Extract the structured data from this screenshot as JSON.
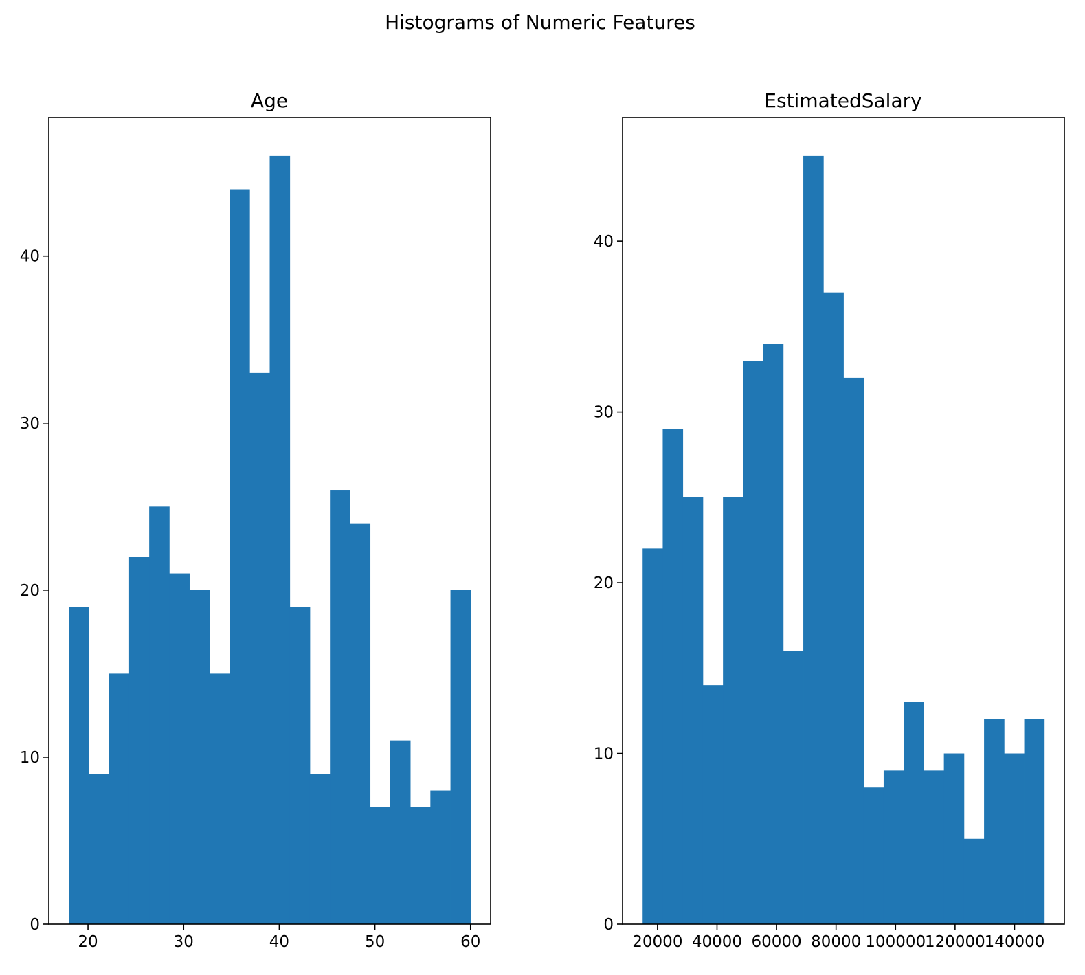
{
  "chart_data": [
    {
      "type": "bar",
      "title": "Age",
      "bar_color": "#2077b4",
      "bin_edges": [
        18,
        20.1,
        22.2,
        24.3,
        26.4,
        28.5,
        30.6,
        32.7,
        34.8,
        36.9,
        39,
        41.1,
        43.2,
        45.3,
        47.4,
        49.5,
        51.6,
        53.7,
        55.8,
        57.9,
        60
      ],
      "counts": [
        19,
        9,
        15,
        22,
        25,
        21,
        20,
        15,
        44,
        33,
        46,
        19,
        9,
        26,
        24,
        7,
        11,
        7,
        8,
        20
      ],
      "xlim": [
        15.9,
        62.1
      ],
      "ylim": [
        0,
        48.3
      ],
      "xticks": [
        "20",
        "30",
        "40",
        "50",
        "60"
      ],
      "yticks": [
        "0",
        "10",
        "20",
        "30",
        "40"
      ]
    },
    {
      "type": "bar",
      "title": "EstimatedSalary",
      "bar_color": "#2077b4",
      "bin_edges": [
        15000,
        21750,
        28500,
        35250,
        42000,
        48750,
        55500,
        62250,
        69000,
        75750,
        82500,
        89250,
        96000,
        102750,
        109500,
        116250,
        123000,
        129750,
        136500,
        143250,
        150000
      ],
      "counts": [
        22,
        29,
        25,
        14,
        25,
        33,
        34,
        16,
        45,
        37,
        32,
        8,
        9,
        13,
        9,
        10,
        5,
        12,
        10,
        12
      ],
      "xlim": [
        8250,
        156750
      ],
      "ylim": [
        0,
        47.25
      ],
      "xticks": [
        "20000",
        "40000",
        "60000",
        "80000",
        "100000",
        "120000",
        "140000"
      ],
      "yticks": [
        "0",
        "10",
        "20",
        "30",
        "40"
      ]
    }
  ],
  "suptitle": "Histograms of Numeric Features"
}
